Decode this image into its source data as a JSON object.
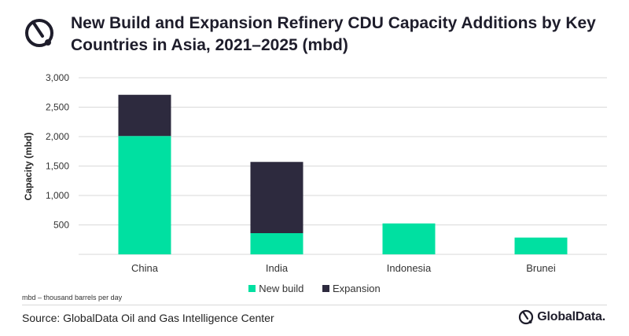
{
  "title": "New Build and Expansion Refinery CDU Capacity Additions by Key Countries in Asia, 2021–2025 (mbd)",
  "colors": {
    "new_build": "#00e0a1",
    "expansion": "#2d2a3e",
    "grid": "#d9d9d9"
  },
  "chart_data": {
    "type": "bar",
    "stacked": true,
    "categories": [
      "China",
      "India",
      "Indonesia",
      "Brunei"
    ],
    "series": [
      {
        "name": "New build",
        "values": [
          2010,
          360,
          525,
          285
        ]
      },
      {
        "name": "Expansion",
        "values": [
          700,
          1210,
          0,
          0
        ]
      }
    ],
    "ylabel": "Capacity (mbd)",
    "ylim": [
      0,
      3000
    ],
    "yticks": [
      "500",
      "1,000",
      "1,500",
      "2,000",
      "2,500",
      "3,000"
    ],
    "ytick_values": [
      500,
      1000,
      1500,
      2000,
      2500,
      3000
    ],
    "grid": true,
    "legend": "bottom"
  },
  "footnote": "mbd – thousand barrels per day",
  "source": "Source: GlobalData Oil and Gas Intelligence Center",
  "brand": "GlobalData.",
  "icons": {
    "top": "globaldata-logo-icon",
    "bottom": "globaldata-logo-icon"
  }
}
